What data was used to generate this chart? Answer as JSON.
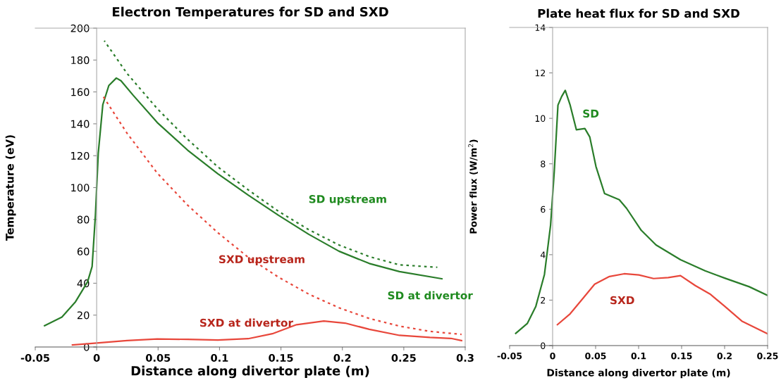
{
  "chart_data": [
    {
      "type": "line",
      "title": "Electron Temperatures for SD and SXD",
      "xlabel": "Distance along divertor plate (m)",
      "ylabel": "Temperature (eV)",
      "xlim": [
        -0.05,
        0.3
      ],
      "xticks": [
        -0.05,
        0,
        0.05,
        0.1,
        0.15,
        0.2,
        0.25,
        0.3
      ],
      "ylim": [
        0,
        200
      ],
      "yticks": [
        0,
        20,
        40,
        60,
        80,
        100,
        120,
        140,
        160,
        180,
        200
      ],
      "grid": false,
      "legend": false,
      "marker": "none",
      "series": [
        {
          "name": "SD at divertor",
          "color": "#2a7d2a",
          "line_style": "solid",
          "x": [
            -0.0424,
            -0.0283,
            -0.0172,
            -0.0074,
            -0.0037,
            -0.001,
            0.0013,
            0.005,
            0.0099,
            0.016,
            0.0198,
            0.0296,
            0.0493,
            0.074,
            0.0986,
            0.1233,
            0.148,
            0.1726,
            0.1972,
            0.2219,
            0.2465,
            0.281
          ],
          "values": [
            13.4,
            18.8,
            28.4,
            40.9,
            50.5,
            83,
            121.6,
            152,
            164,
            168.7,
            167,
            158,
            140.8,
            123.5,
            108.7,
            95.3,
            82.6,
            70.7,
            60.1,
            52.4,
            47.3,
            42.8
          ]
        },
        {
          "name": "SD upstream",
          "color": "#2a7d2a",
          "line_style": "dotted",
          "x": [
            0.0062,
            0.0247,
            0.0493,
            0.074,
            0.0986,
            0.1233,
            0.148,
            0.1726,
            0.1972,
            0.2219,
            0.2465,
            0.2773
          ],
          "values": [
            192.1,
            171.6,
            149.5,
            130.3,
            113,
            98.6,
            85.1,
            73.6,
            64,
            56.7,
            51.5,
            50
          ]
        },
        {
          "name": "SXD upstream",
          "color": "#e8473b",
          "line_style": "dotted",
          "x": [
            0.005,
            0.0247,
            0.0493,
            0.074,
            0.0986,
            0.1233,
            0.148,
            0.1726,
            0.1972,
            0.2219,
            0.2465,
            0.2712,
            0.297
          ],
          "values": [
            157.5,
            134.1,
            109.1,
            89,
            71.7,
            56.3,
            43.8,
            33.2,
            24.6,
            17.9,
            13.1,
            9.8,
            7.9
          ]
        },
        {
          "name": "SXD at divertor",
          "color": "#e8473b",
          "line_style": "solid",
          "x": [
            -0.0197,
            0,
            0.0247,
            0.0493,
            0.074,
            0.0986,
            0.1233,
            0.143,
            0.1627,
            0.1849,
            0.2022,
            0.2219,
            0.2465,
            0.2712,
            0.2884,
            0.297
          ],
          "values": [
            1.3,
            2.5,
            4.0,
            5.0,
            4.8,
            4.4,
            5.2,
            8.3,
            14.0,
            16.3,
            15.0,
            11.1,
            7.3,
            6.0,
            5.4,
            4.0
          ]
        }
      ]
    },
    {
      "type": "line",
      "title": "Plate heat flux for SD and SXD",
      "xlabel": "Distance along divertor plate (m)",
      "ylabel": "Power flux (W/m$^{2}$)",
      "xlim": [
        -0.05,
        0.25
      ],
      "xticks": [
        -0.05,
        0,
        0.05,
        0.1,
        0.15,
        0.2,
        0.25
      ],
      "ylim": [
        0,
        14
      ],
      "yticks": [
        0,
        2,
        4,
        6,
        8,
        10,
        12,
        14
      ],
      "grid": false,
      "legend": false,
      "marker": "none",
      "series": [
        {
          "name": "SD",
          "color": "#2a7d2a",
          "line_style": "solid",
          "x": [
            -0.0429,
            -0.0295,
            -0.0195,
            -0.0095,
            -0.0024,
            0.0019,
            0.0062,
            0.0105,
            0.0147,
            0.0204,
            0.0276,
            0.0375,
            0.0432,
            0.0504,
            0.0604,
            0.0775,
            0.086,
            0.1031,
            0.1202,
            0.1487,
            0.1773,
            0.2001,
            0.2286,
            0.25
          ],
          "values": [
            0.54,
            0.97,
            1.73,
            3.13,
            5.29,
            7.66,
            10.58,
            10.96,
            11.23,
            10.58,
            9.5,
            9.55,
            9.18,
            7.88,
            6.69,
            6.42,
            6.04,
            5.07,
            4.43,
            3.78,
            3.29,
            2.97,
            2.59,
            2.21
          ]
        },
        {
          "name": "SXD",
          "color": "#e8473b",
          "line_style": "solid",
          "x": [
            0.0056,
            0.0204,
            0.0347,
            0.0489,
            0.0661,
            0.0832,
            0.1003,
            0.1174,
            0.1345,
            0.1487,
            0.1659,
            0.183,
            0.2001,
            0.22,
            0.25
          ],
          "values": [
            0.92,
            1.4,
            2.05,
            2.7,
            3.04,
            3.16,
            3.11,
            2.95,
            2.99,
            3.08,
            2.64,
            2.27,
            1.73,
            1.08,
            0.52
          ]
        }
      ]
    }
  ]
}
